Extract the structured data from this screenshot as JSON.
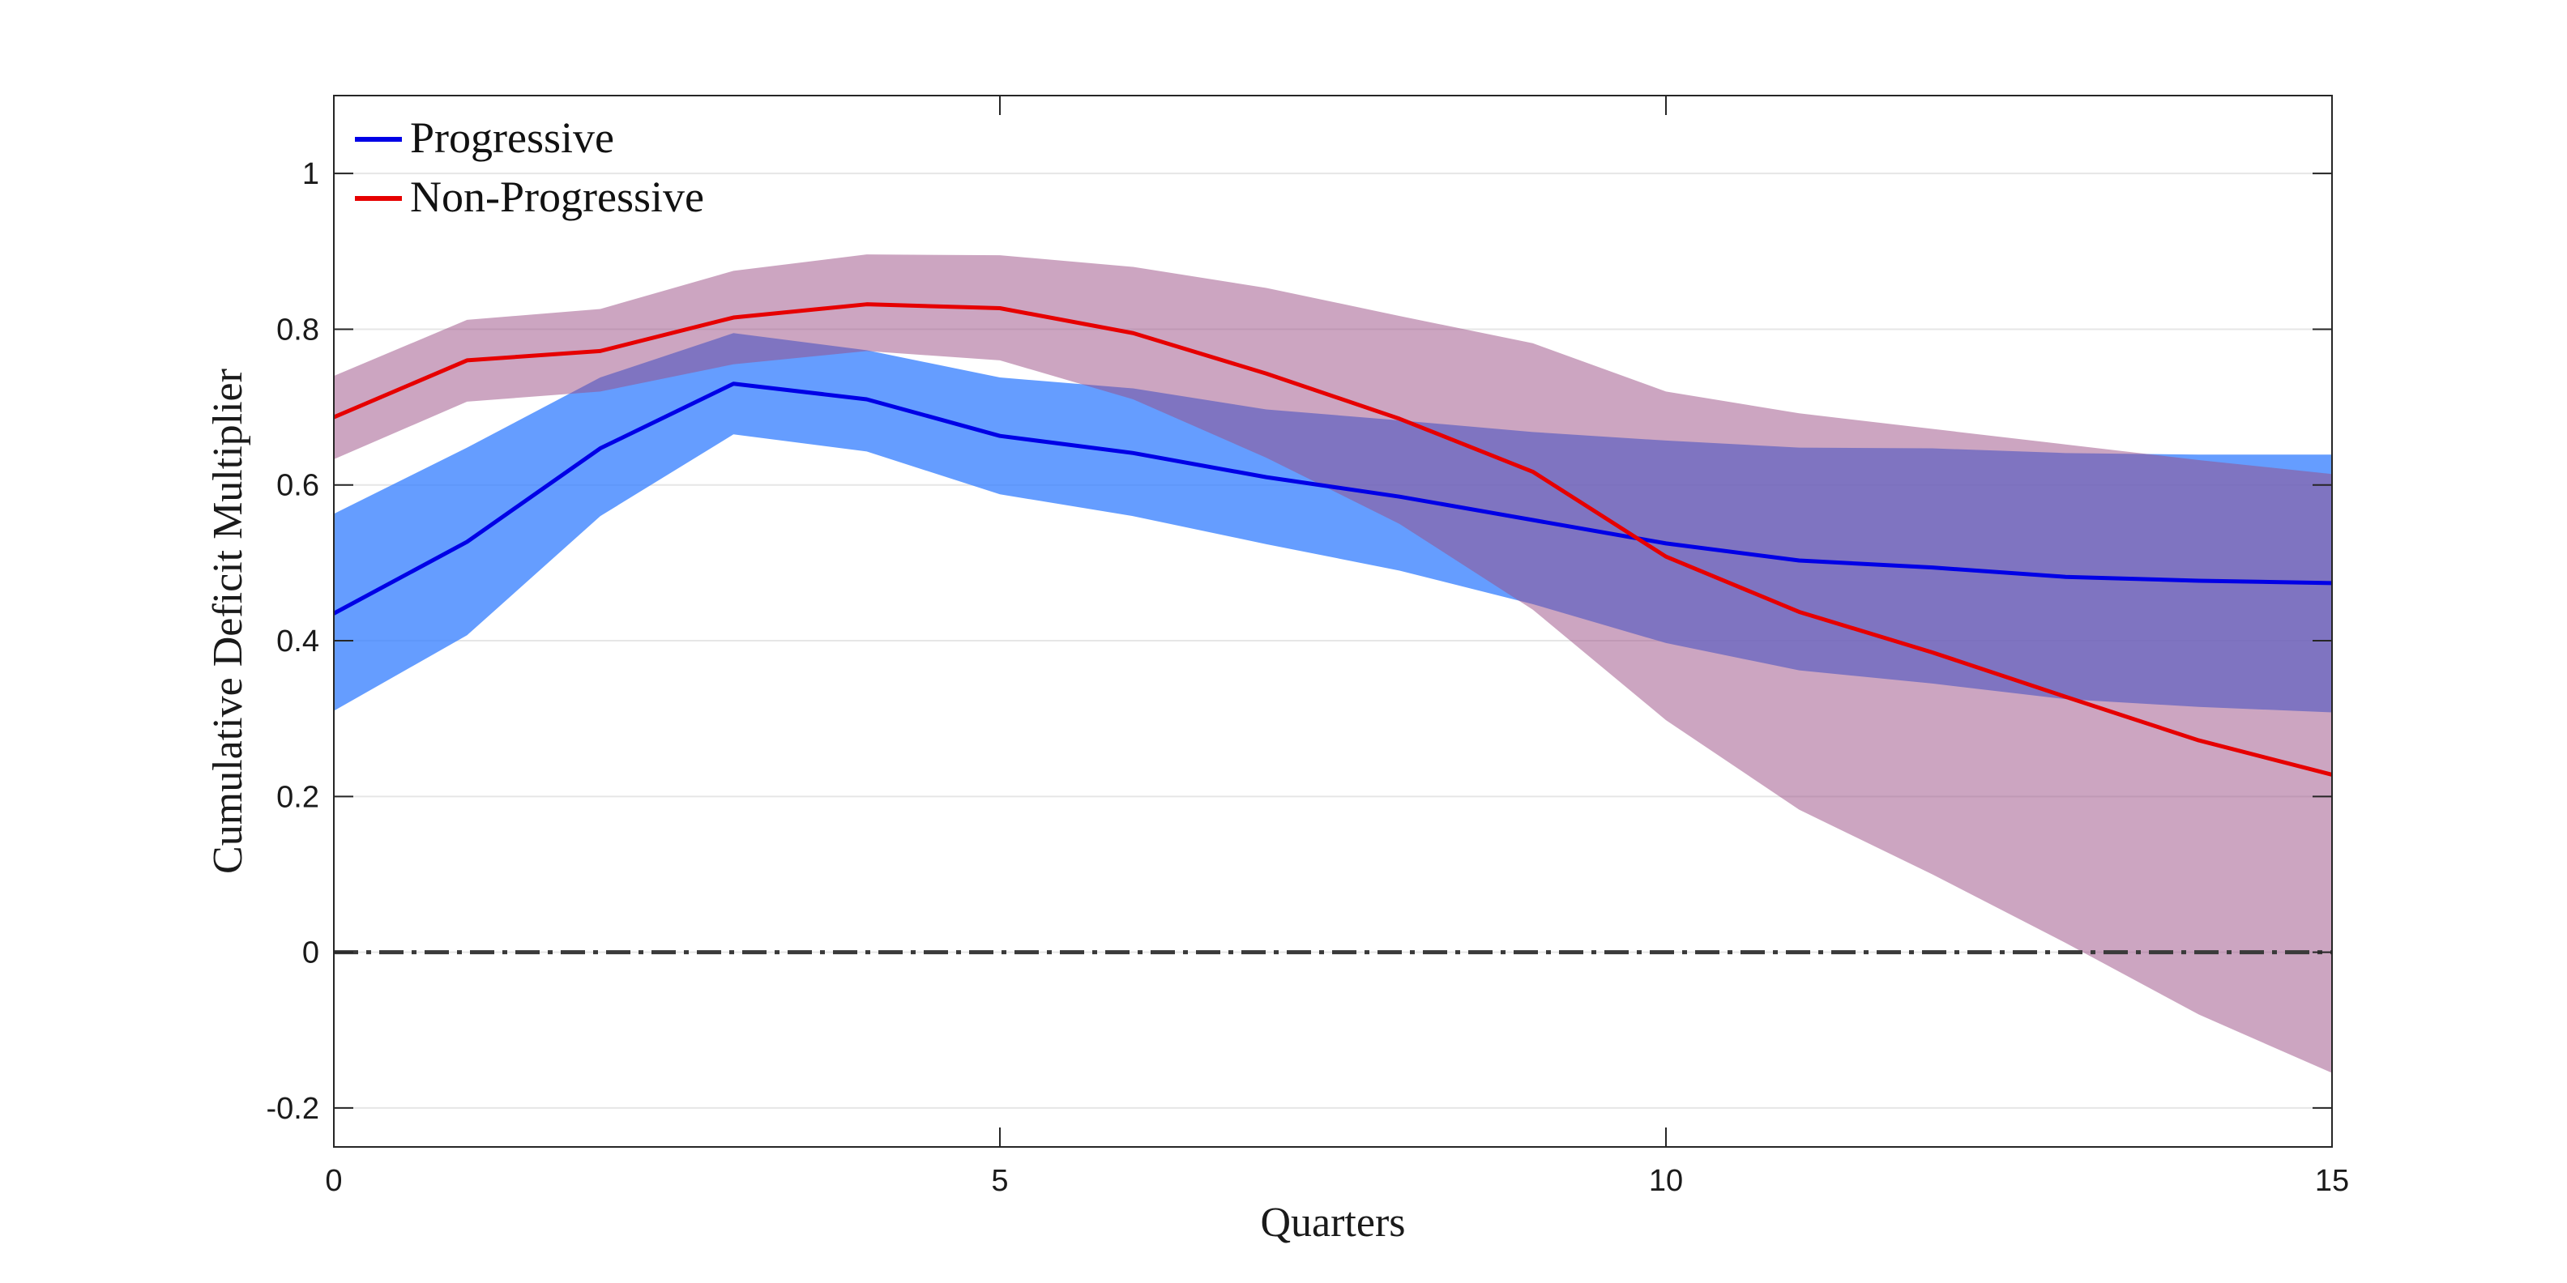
{
  "chart_data": {
    "type": "line",
    "xlabel": "Quarters",
    "ylabel": "Cumulative Deficit Multiplier",
    "xlim": [
      0,
      15
    ],
    "ylim": [
      -0.25,
      1.1
    ],
    "xticks": [
      0,
      5,
      10,
      15
    ],
    "yticks": [
      -0.2,
      0,
      0.2,
      0.4,
      0.6,
      0.8,
      1
    ],
    "ytick_labels": [
      "-0.2",
      "0",
      "0.2",
      "0.4",
      "0.6",
      "0.8",
      "1"
    ],
    "grid": "horizontal",
    "legend_position": "top-left",
    "zero_line": {
      "y": 0,
      "style": "dash-dot",
      "color": "#3a3a3a"
    },
    "x": [
      0,
      1,
      2,
      3,
      4,
      5,
      6,
      7,
      8,
      9,
      10,
      11,
      12,
      13,
      14,
      15
    ],
    "series": [
      {
        "name": "Progressive",
        "color": "#0000e6",
        "band_color": "#2f7bff",
        "values": [
          0.435,
          0.527,
          0.647,
          0.73,
          0.71,
          0.663,
          0.641,
          0.61,
          0.585,
          0.555,
          0.525,
          0.503,
          0.494,
          0.482,
          0.477,
          0.474
        ],
        "lower": [
          0.31,
          0.407,
          0.56,
          0.665,
          0.643,
          0.588,
          0.56,
          0.524,
          0.49,
          0.447,
          0.397,
          0.362,
          0.345,
          0.325,
          0.315,
          0.308
        ],
        "upper": [
          0.563,
          0.648,
          0.738,
          0.795,
          0.773,
          0.738,
          0.724,
          0.697,
          0.683,
          0.668,
          0.657,
          0.648,
          0.647,
          0.641,
          0.639,
          0.639
        ]
      },
      {
        "name": "Non-Progressive",
        "color": "#e60000",
        "band_color": "#9a4c83",
        "values": [
          0.687,
          0.76,
          0.772,
          0.815,
          0.832,
          0.827,
          0.795,
          0.743,
          0.685,
          0.617,
          0.508,
          0.437,
          0.385,
          0.328,
          0.272,
          0.228
        ],
        "lower": [
          0.633,
          0.707,
          0.72,
          0.755,
          0.772,
          0.76,
          0.71,
          0.635,
          0.55,
          0.44,
          0.298,
          0.183,
          0.1,
          0.012,
          -0.08,
          -0.155
        ],
        "upper": [
          0.74,
          0.812,
          0.826,
          0.875,
          0.896,
          0.895,
          0.88,
          0.853,
          0.817,
          0.782,
          0.72,
          0.692,
          0.672,
          0.652,
          0.632,
          0.614
        ]
      }
    ]
  }
}
